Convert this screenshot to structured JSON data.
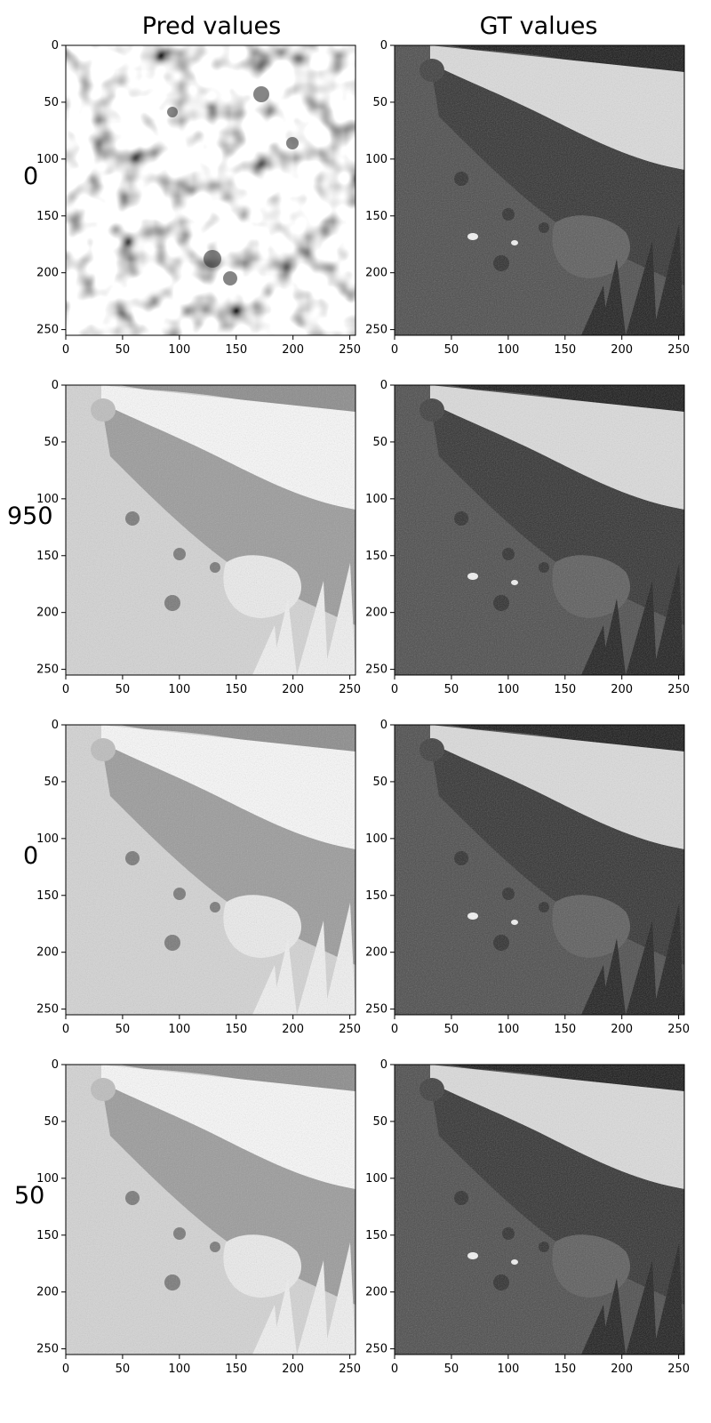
{
  "titles": {
    "pred": "Pred values",
    "gt": "GT values"
  },
  "row_labels": [
    "0",
    "950",
    "0",
    "50"
  ],
  "axis_ticks": {
    "x": [
      "0",
      "50",
      "100",
      "150",
      "200",
      "250"
    ],
    "y": [
      "0",
      "50",
      "100",
      "150",
      "200",
      "250"
    ]
  },
  "axis_range": {
    "min": 0,
    "max": 255
  },
  "panels": [
    {
      "row": 0,
      "col": "pred",
      "content": "blurry-noise"
    },
    {
      "row": 0,
      "col": "gt",
      "content": "coastal-beach-photo"
    },
    {
      "row": 1,
      "col": "pred",
      "content": "bright-coastal-reconstruction"
    },
    {
      "row": 1,
      "col": "gt",
      "content": "coastal-beach-photo"
    },
    {
      "row": 2,
      "col": "pred",
      "content": "bright-coastal-reconstruction"
    },
    {
      "row": 2,
      "col": "gt",
      "content": "coastal-beach-photo"
    },
    {
      "row": 3,
      "col": "pred",
      "content": "bright-coastal-reconstruction"
    },
    {
      "row": 3,
      "col": "gt",
      "content": "coastal-beach-photo"
    }
  ],
  "colors": {
    "axes": "#000000",
    "background": "#ffffff"
  }
}
